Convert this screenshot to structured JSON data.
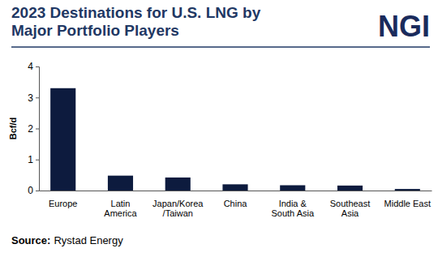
{
  "chart_data": {
    "type": "bar",
    "title": [
      "2023 Destinations for U.S. LNG by",
      "Major Portfolio Players"
    ],
    "logo": "NGI",
    "y_label": "Bcf/d",
    "categories": [
      "Europe",
      "Latin America",
      "Japan/Korea/Taiwan",
      "China",
      "India & South Asia",
      "Southeast Asia",
      "Middle East"
    ],
    "values": [
      3.3,
      0.48,
      0.42,
      0.2,
      0.17,
      0.16,
      0.05
    ],
    "color": "#0d1b3e",
    "ylim": [
      0,
      4
    ],
    "yticks": [
      0,
      1,
      2,
      3,
      4
    ],
    "grid": false,
    "source_label": "Source:",
    "source": "Rystad Energy"
  }
}
